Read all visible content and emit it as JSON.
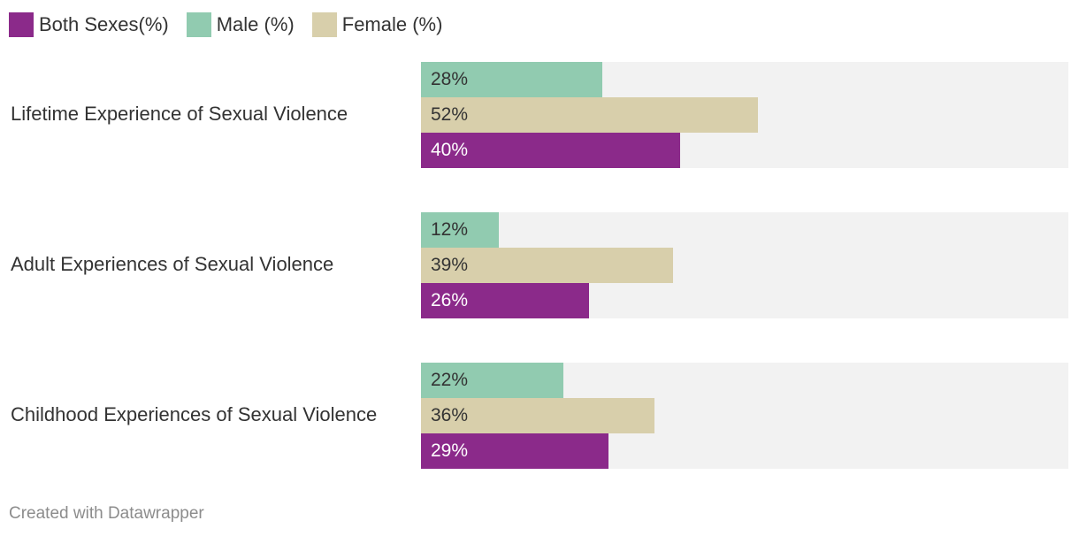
{
  "legend": {
    "items": [
      {
        "label": "Both Sexes(%)",
        "color": "#8b2a8a"
      },
      {
        "label": "Male (%)",
        "color": "#91cbb0"
      },
      {
        "label": "Female (%)",
        "color": "#d8cfab"
      }
    ]
  },
  "chart_data": {
    "type": "bar",
    "orientation": "horizontal",
    "categories": [
      "Lifetime Experience of Sexual Violence",
      "Adult Experiences of Sexual Violence",
      "Childhood Experiences of Sexual Violence"
    ],
    "series": [
      {
        "name": "Male (%)",
        "color": "#91cbb0",
        "label_color": "#333333",
        "values": [
          28,
          12,
          22
        ],
        "labels": [
          "28%",
          "12%",
          "22%"
        ]
      },
      {
        "name": "Female (%)",
        "color": "#d8cfab",
        "label_color": "#333333",
        "values": [
          52,
          39,
          36
        ],
        "labels": [
          "52%",
          "39%",
          "36%"
        ]
      },
      {
        "name": "Both Sexes(%)",
        "color": "#8b2a8a",
        "label_color": "#ffffff",
        "values": [
          40,
          26,
          29
        ],
        "labels": [
          "40%",
          "26%",
          "29%"
        ]
      }
    ],
    "xlim": [
      0,
      100
    ],
    "background_track_color": "#f2f2f2",
    "grid": false,
    "legend_position": "top-left"
  },
  "footer": {
    "credit": "Created with Datawrapper"
  }
}
